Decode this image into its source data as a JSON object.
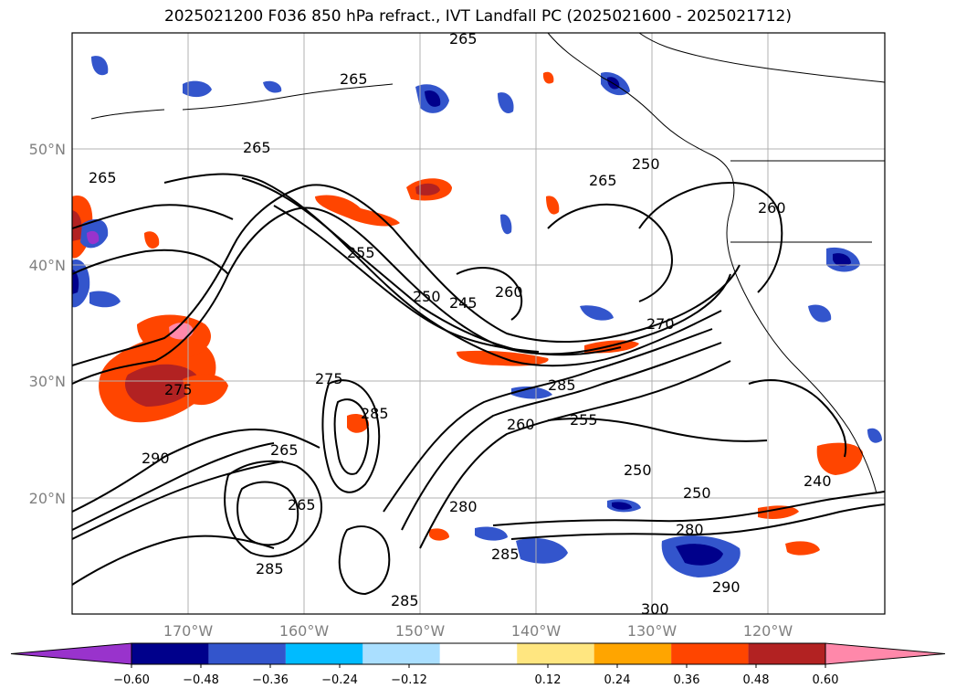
{
  "title": "2025021200 F036 850 hPa refract., IVT Landfall PC (2025021600 - 2025021712)",
  "axes": {
    "lat_labels": [
      "50°N",
      "40°N",
      "30°N",
      "20°N"
    ],
    "lon_labels": [
      "170°W",
      "160°W",
      "150°W",
      "140°W",
      "130°W",
      "120°W"
    ]
  },
  "contour_labels": [
    "265",
    "265",
    "265",
    "265",
    "265",
    "250",
    "260",
    "255",
    "250",
    "245",
    "260",
    "270",
    "275",
    "285",
    "285",
    "265",
    "255",
    "250",
    "250",
    "240",
    "280",
    "280",
    "285",
    "285",
    "290",
    "290",
    "300",
    "285",
    "265",
    "275",
    "260"
  ],
  "colorbar": {
    "ticks": [
      "−0.60",
      "−0.48",
      "−0.36",
      "−0.24",
      "−0.12",
      "0.12",
      "0.24",
      "0.36",
      "0.48",
      "0.60"
    ],
    "colors": [
      "#9933cc",
      "#00008b",
      "#3355cc",
      "#00bbff",
      "#aadfff",
      "#ffffff",
      "#ffe680",
      "#ffa500",
      "#ff4500",
      "#b22222",
      "#ff88aa"
    ]
  }
}
